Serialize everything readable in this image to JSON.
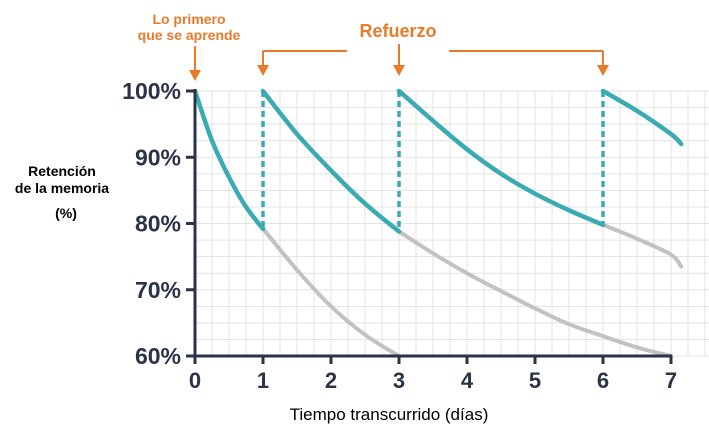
{
  "chart_data": {
    "type": "line",
    "title": "",
    "xlabel": "Tiempo transcurrido (días)",
    "ylabel_line1": "Retención",
    "ylabel_line2": "de la memoria",
    "ylabel_unit": "(%)",
    "xlim": [
      0,
      7
    ],
    "ylim": [
      60,
      100
    ],
    "x_ticks": [
      "0",
      "1",
      "2",
      "3",
      "4",
      "5",
      "6",
      "7"
    ],
    "y_ticks": [
      "60%",
      "70%",
      "80%",
      "90%",
      "100%"
    ],
    "grid": true,
    "annotations": {
      "first_learning_line1": "Lo primero",
      "first_learning_line2": "que se aprende",
      "reinforcement": "Refuerzo"
    },
    "reinforcement_days": [
      1,
      3,
      6
    ],
    "retained_curves": [
      {
        "x": [
          0,
          0.25,
          0.5,
          0.75,
          1
        ],
        "y": [
          100,
          92.5,
          87,
          82.5,
          79.2
        ]
      },
      {
        "x": [
          1,
          1.5,
          2,
          2.5,
          3
        ],
        "y": [
          100,
          93.5,
          88,
          83,
          78.8
        ]
      },
      {
        "x": [
          3,
          3.5,
          4,
          4.5,
          5,
          5.5,
          6
        ],
        "y": [
          100,
          95.5,
          91.2,
          87.5,
          84.5,
          82,
          79.8
        ]
      },
      {
        "x": [
          6,
          6.5,
          7,
          7.15
        ],
        "y": [
          100,
          97,
          93.5,
          92
        ]
      }
    ],
    "decay_curves": [
      {
        "x": [
          1,
          1.5,
          2,
          2.5,
          3
        ],
        "y": [
          79.2,
          73,
          67.5,
          63.2,
          60
        ]
      },
      {
        "x": [
          3,
          3.5,
          4,
          4.5,
          5,
          5.5,
          6,
          6.5,
          7
        ],
        "y": [
          78.8,
          75.5,
          72.5,
          69.8,
          67.2,
          64.8,
          63,
          61.3,
          60
        ]
      },
      {
        "x": [
          6,
          6.5,
          7,
          7.15
        ],
        "y": [
          79.8,
          77.7,
          75.3,
          73.5
        ]
      }
    ],
    "colors": {
      "retained": "#3aaab3",
      "decay": "#c2c2c2",
      "annotation": "#e87b2a",
      "axis": "#2a3347",
      "grid": "#e3e3e3"
    }
  }
}
